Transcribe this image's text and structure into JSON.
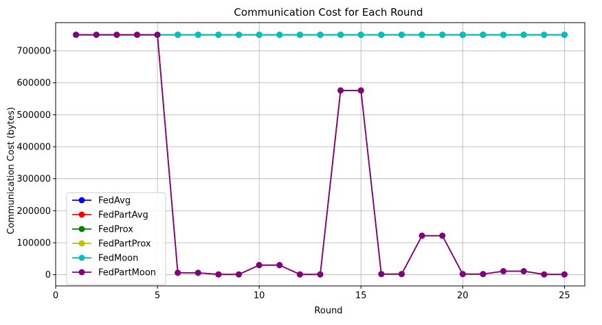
{
  "chart_data": {
    "type": "line",
    "title": "Communication Cost for Each Round",
    "xlabel": "Round",
    "ylabel": "Communication Cost (bytes)",
    "xlim": [
      0,
      26
    ],
    "ylim": [
      -35000,
      788000
    ],
    "xticks": [
      0,
      5,
      10,
      15,
      20,
      25
    ],
    "yticks": [
      0,
      100000,
      200000,
      300000,
      400000,
      500000,
      600000,
      700000
    ],
    "grid": true,
    "legend_position": "lower-left",
    "x": [
      1,
      2,
      3,
      4,
      5,
      6,
      7,
      8,
      9,
      10,
      11,
      12,
      13,
      14,
      15,
      16,
      17,
      18,
      19,
      20,
      21,
      22,
      23,
      24,
      25
    ],
    "series": [
      {
        "name": "FedAvg",
        "color": "#0000ff",
        "values": [
          750000,
          750000,
          750000,
          750000,
          750000,
          750000,
          750000,
          750000,
          750000,
          750000,
          750000,
          750000,
          750000,
          750000,
          750000,
          750000,
          750000,
          750000,
          750000,
          750000,
          750000,
          750000,
          750000,
          750000,
          750000
        ]
      },
      {
        "name": "FedPartAvg",
        "color": "#ff0000",
        "values": [
          750000,
          750000,
          750000,
          750000,
          750000,
          6000,
          6000,
          1000,
          1000,
          30000,
          30000,
          1000,
          1000,
          576000,
          576000,
          2000,
          2000,
          122000,
          122000,
          2000,
          2000,
          11000,
          11000,
          1000,
          1000
        ]
      },
      {
        "name": "FedProx",
        "color": "#008000",
        "values": [
          750000,
          750000,
          750000,
          750000,
          750000,
          750000,
          750000,
          750000,
          750000,
          750000,
          750000,
          750000,
          750000,
          750000,
          750000,
          750000,
          750000,
          750000,
          750000,
          750000,
          750000,
          750000,
          750000,
          750000,
          750000
        ]
      },
      {
        "name": "FedPartProx",
        "color": "#bfbf00",
        "values": [
          750000,
          750000,
          750000,
          750000,
          750000,
          6000,
          6000,
          1000,
          1000,
          30000,
          30000,
          1000,
          1000,
          576000,
          576000,
          2000,
          2000,
          122000,
          122000,
          2000,
          2000,
          11000,
          11000,
          1000,
          1000
        ]
      },
      {
        "name": "FedMoon",
        "color": "#00bfbf",
        "values": [
          750000,
          750000,
          750000,
          750000,
          750000,
          750000,
          750000,
          750000,
          750000,
          750000,
          750000,
          750000,
          750000,
          750000,
          750000,
          750000,
          750000,
          750000,
          750000,
          750000,
          750000,
          750000,
          750000,
          750000,
          750000
        ]
      },
      {
        "name": "FedPartMoon",
        "color": "#800080",
        "values": [
          750000,
          750000,
          750000,
          750000,
          750000,
          6000,
          6000,
          1000,
          1000,
          30000,
          30000,
          1000,
          1000,
          576000,
          576000,
          2000,
          2000,
          122000,
          122000,
          2000,
          2000,
          11000,
          11000,
          1000,
          1000
        ]
      }
    ]
  }
}
